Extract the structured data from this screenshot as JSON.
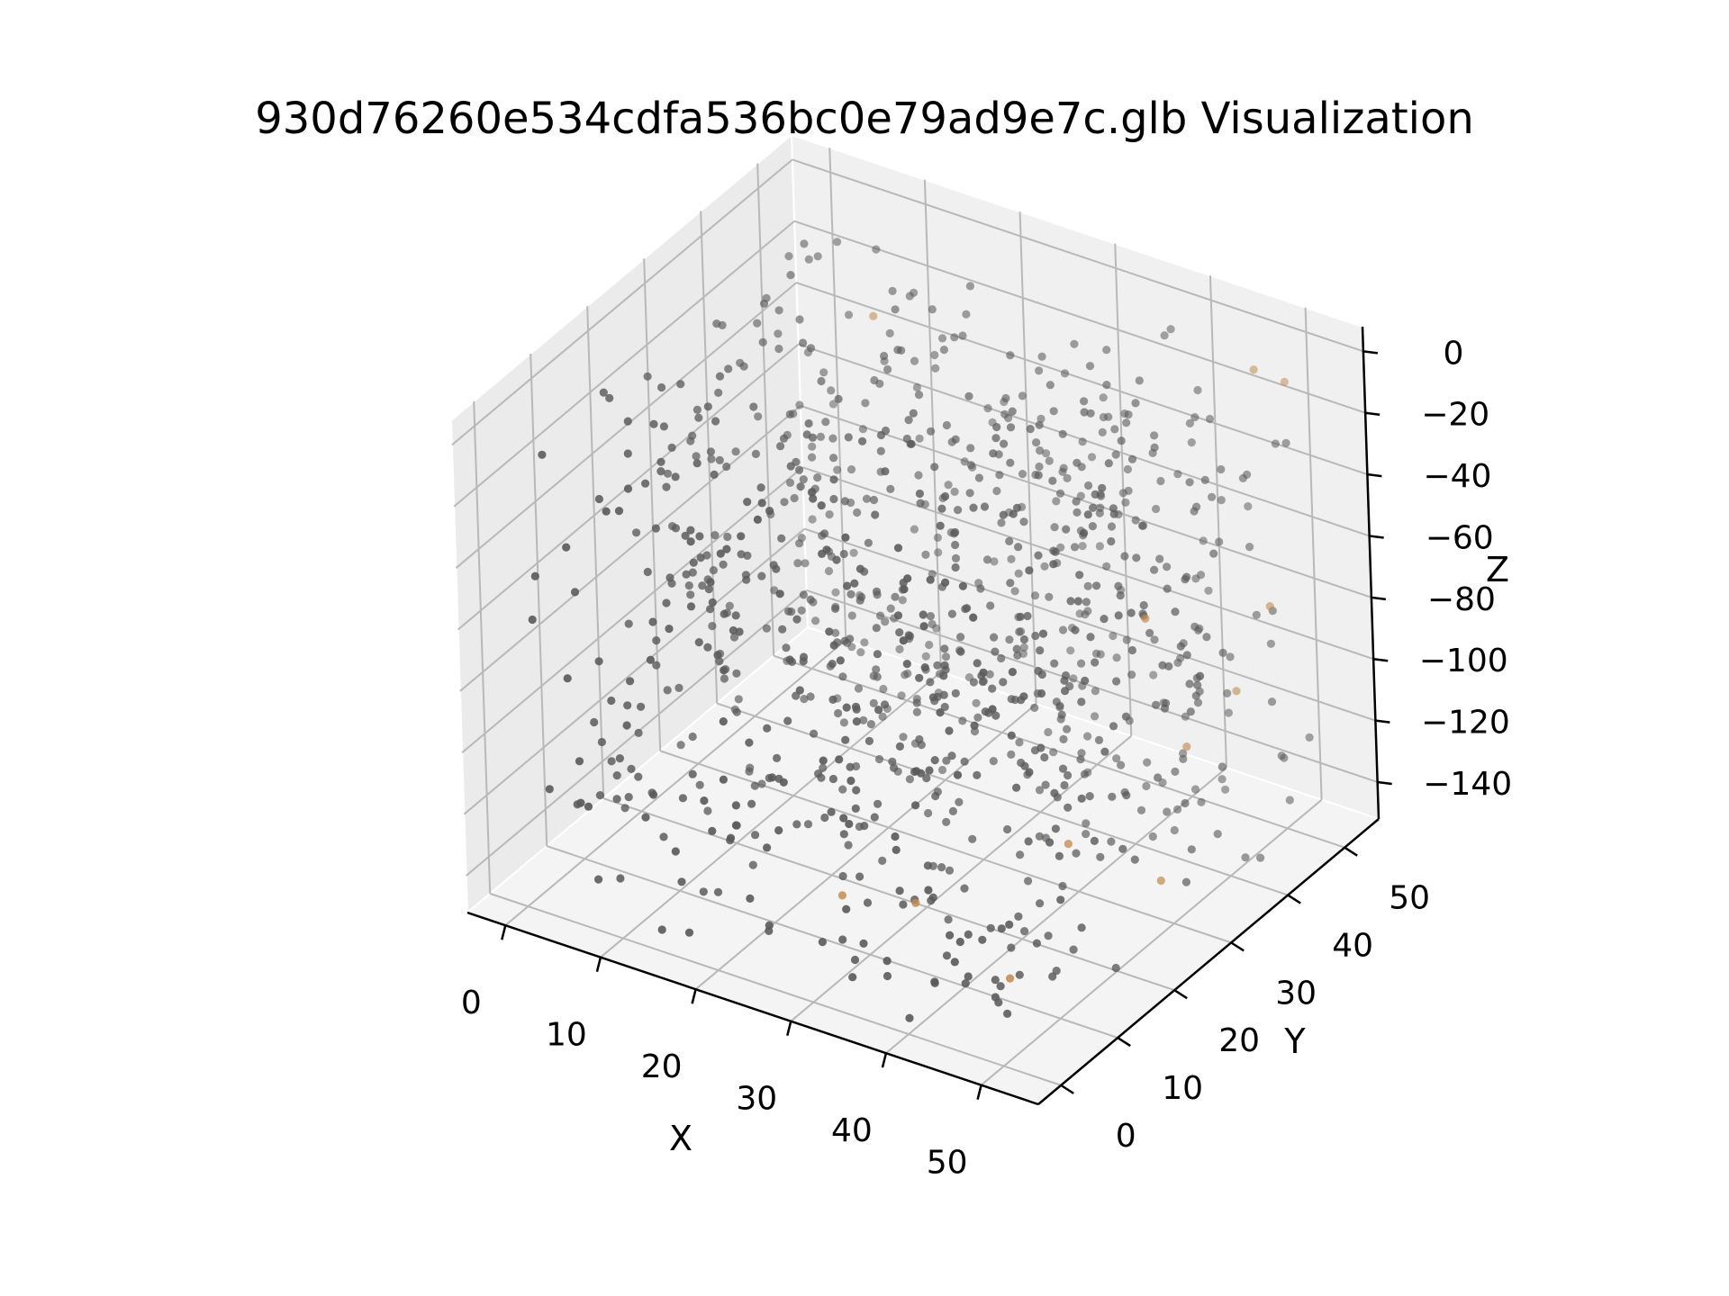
{
  "chart_data": {
    "type": "scatter",
    "projection": "3d",
    "title": "930d76260e534cdfa536bc0e79ad9e7c.glb Visualization",
    "xlabel": "X",
    "ylabel": "Y",
    "zlabel": "Z",
    "xlim": [
      -4,
      56
    ],
    "ylim": [
      -4,
      56
    ],
    "zlim": [
      -152,
      8
    ],
    "xticks": [
      0,
      10,
      20,
      30,
      40,
      50
    ],
    "yticks": [
      0,
      10,
      20,
      30,
      40,
      50
    ],
    "zticks": [
      0,
      -20,
      -40,
      -60,
      -80,
      -100,
      -120,
      -140
    ],
    "xtick_labels": [
      "0",
      "10",
      "20",
      "30",
      "40",
      "50"
    ],
    "ytick_labels": [
      "0",
      "10",
      "20",
      "30",
      "40",
      "50"
    ],
    "ztick_labels": [
      "0",
      "−20",
      "−40",
      "−60",
      "−80",
      "−100",
      "−120",
      "−140"
    ],
    "grid": true,
    "point_count": 1000,
    "point_distribution": "approximately uniform within x 0–52, y 0–52, z −150–0",
    "colors": {
      "points": "#5a5a5a",
      "highlight_points": "#c08a50",
      "pane": "#f2f2f2",
      "pane_edge": "#ffffff",
      "grid": "#b8b8b8",
      "axis_line": "#000000"
    },
    "highlight_points": [
      {
        "x": 48,
        "y": 50,
        "z": -5
      },
      {
        "x": 50,
        "y": 52,
        "z": -10
      },
      {
        "x": 52,
        "y": 45,
        "z": -70
      },
      {
        "x": 48,
        "y": 30,
        "z": -55
      },
      {
        "x": 47,
        "y": 38,
        "z": -110
      },
      {
        "x": 50,
        "y": 28,
        "z": -135
      },
      {
        "x": 44,
        "y": 22,
        "z": -120
      },
      {
        "x": 35,
        "y": 10,
        "z": -130
      },
      {
        "x": 26,
        "y": 12,
        "z": -140
      },
      {
        "x": 50,
        "y": 42,
        "z": -95
      },
      {
        "x": 9,
        "y": 48,
        "z": -25
      },
      {
        "x": 46,
        "y": 8,
        "z": -140
      }
    ]
  }
}
